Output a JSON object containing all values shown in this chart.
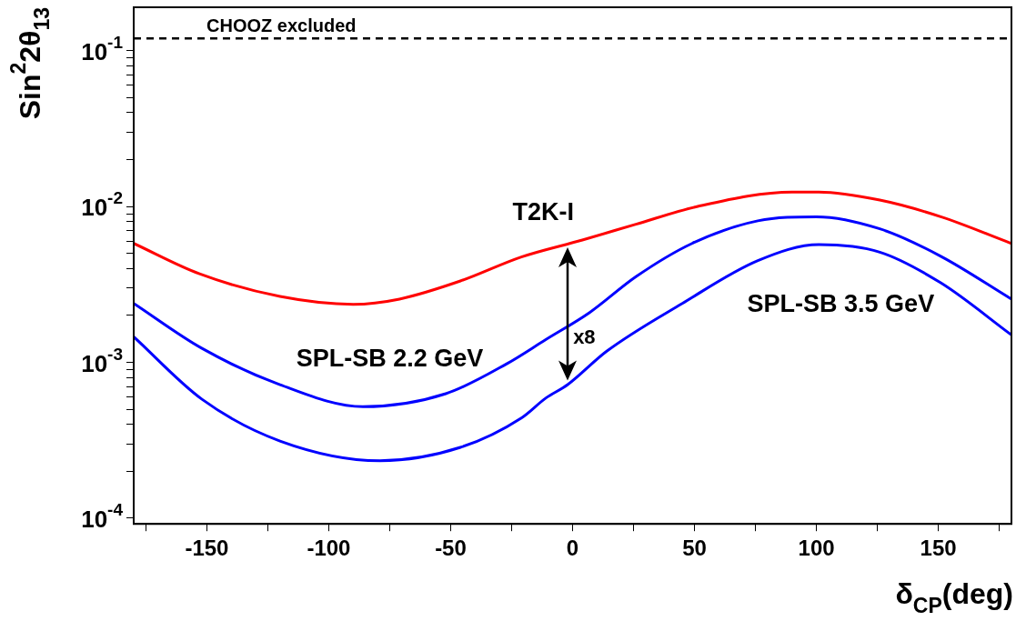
{
  "chart_data": {
    "type": "line",
    "xlabel": "δ$_{CP}$(deg)",
    "ylabel": "Sin$^{2}$2θ$_{13}$",
    "log": "y",
    "grid": false,
    "legend": false,
    "marker": "none",
    "line_style": "solid",
    "xlim": [
      -180,
      180
    ],
    "ylim": [
      9.2e-05,
      0.19
    ],
    "xticks": [
      {
        "value": -175,
        "label": null
      },
      -150,
      {
        "value": -125,
        "label": null
      },
      -100,
      {
        "value": -75,
        "label": null
      },
      -50,
      {
        "value": -25,
        "label": null
      },
      0,
      {
        "value": 25,
        "label": null
      },
      50,
      {
        "value": 75,
        "label": null
      },
      100,
      {
        "value": 125,
        "label": null
      },
      150,
      {
        "value": 175,
        "label": null
      }
    ],
    "yticks": [
      {
        "value": 0.0001,
        "label": "10$^{-4}$"
      },
      {
        "value": 0.0002,
        "label": null
      },
      {
        "value": 0.0003,
        "label": null
      },
      {
        "value": 0.0004,
        "label": null
      },
      {
        "value": 0.0005,
        "label": null
      },
      {
        "value": 0.0006,
        "label": null
      },
      {
        "value": 0.0007,
        "label": null
      },
      {
        "value": 0.0008,
        "label": null
      },
      {
        "value": 0.0009,
        "label": null
      },
      {
        "value": 0.001,
        "label": "10$^{-3}$"
      },
      {
        "value": 0.002,
        "label": null
      },
      {
        "value": 0.003,
        "label": null
      },
      {
        "value": 0.004,
        "label": null
      },
      {
        "value": 0.005,
        "label": null
      },
      {
        "value": 0.006,
        "label": null
      },
      {
        "value": 0.007,
        "label": null
      },
      {
        "value": 0.008,
        "label": null
      },
      {
        "value": 0.009,
        "label": null
      },
      {
        "value": 0.01,
        "label": "10$^{-2}$"
      },
      {
        "value": 0.02,
        "label": null
      },
      {
        "value": 0.03,
        "label": null
      },
      {
        "value": 0.04,
        "label": null
      },
      {
        "value": 0.05,
        "label": null
      },
      {
        "value": 0.06,
        "label": null
      },
      {
        "value": 0.07,
        "label": null
      },
      {
        "value": 0.08,
        "label": null
      },
      {
        "value": 0.09,
        "label": null
      },
      {
        "value": 0.1,
        "label": "10$^{-1}$"
      }
    ],
    "series": [
      {
        "name": "T2K-I",
        "color": "#ff0000",
        "x": [
          -180,
          -153,
          -120,
          -90,
          -71,
          -46,
          -21,
          4,
          26,
          51,
          90,
          101,
          126,
          151,
          180
        ],
        "values": [
          0.0058,
          0.0037,
          0.00265,
          0.00236,
          0.00255,
          0.00333,
          0.00475,
          0.0061,
          0.0077,
          0.01,
          0.0124,
          0.0124,
          0.011,
          0.0086,
          0.0058
        ]
      },
      {
        "name": "SPL-SB 2.2 GeV",
        "color": "#0000ff",
        "x": [
          -180,
          -152,
          -120,
          -86,
          -52,
          -27,
          -11,
          7,
          26,
          49,
          76,
          100,
          126,
          151,
          180
        ],
        "values": [
          0.00239,
          0.00123,
          0.00072,
          0.00052,
          0.00063,
          0.00098,
          0.0014,
          0.00209,
          0.00355,
          0.0058,
          0.0081,
          0.0086,
          0.0072,
          0.0048,
          0.00255
        ]
      },
      {
        "name": "SPL-SB 3.5 GeV",
        "color": "#0000ff",
        "x": [
          -180,
          -152,
          -120,
          -79,
          -46,
          -21,
          -11,
          -2,
          14,
          45,
          76,
          101,
          126,
          151,
          180
        ],
        "values": [
          0.00146,
          0.00058,
          0.000313,
          0.000234,
          0.000285,
          0.00044,
          0.00059,
          0.00072,
          0.00118,
          0.00239,
          0.0045,
          0.0057,
          0.0051,
          0.00324,
          0.0015
        ]
      }
    ],
    "ref_lines": [
      {
        "axis": "y",
        "value": 0.12,
        "label": "CHOOZ excluded",
        "color": "#000000",
        "line_style": "dashed"
      }
    ],
    "annotations": [
      "x8"
    ]
  }
}
